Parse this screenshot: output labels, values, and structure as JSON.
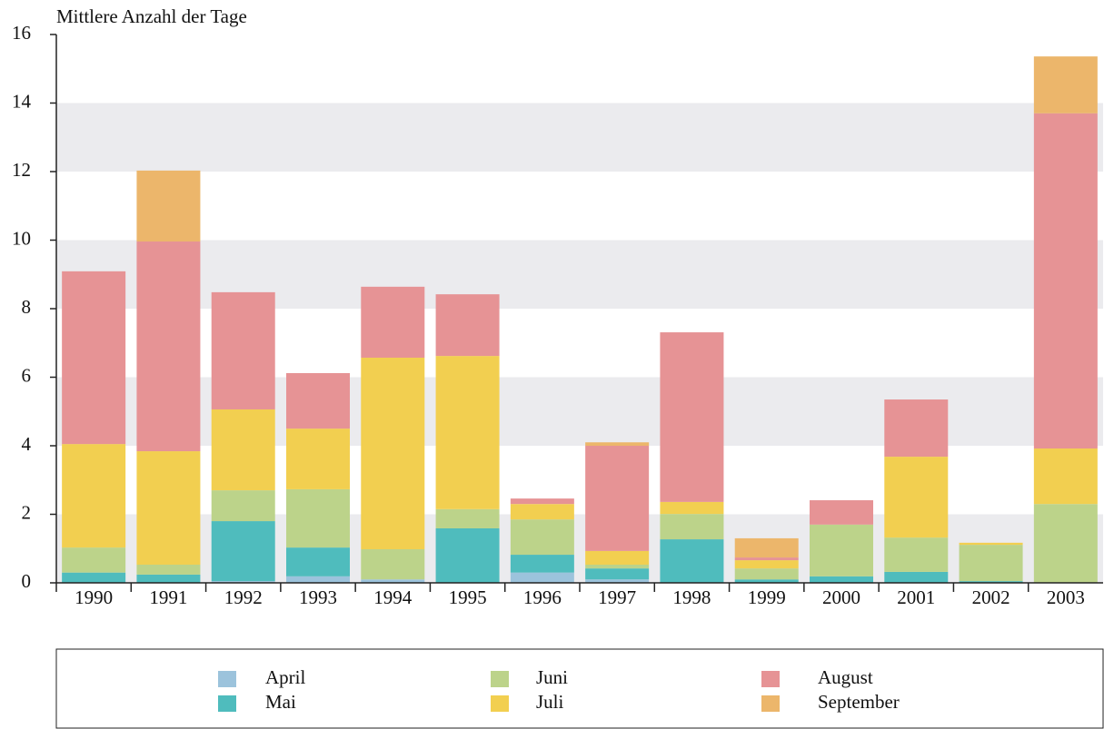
{
  "chart_data": {
    "type": "stacked_bar",
    "y_label": "Mittlere Anzahl der Tage",
    "categories": [
      "1990",
      "1991",
      "1992",
      "1993",
      "1994",
      "1995",
      "1996",
      "1997",
      "1998",
      "1999",
      "2000",
      "2001",
      "2002",
      "2003"
    ],
    "series": [
      {
        "name": "April",
        "color": "#9cc3dc",
        "values": [
          0,
          0,
          0.05,
          0.19,
          0.1,
          0,
          0.3,
          0.1,
          0,
          0,
          0,
          0,
          0,
          0
        ]
      },
      {
        "name": "Mai",
        "color": "#4fbcbd",
        "values": [
          0.3,
          0.24,
          1.75,
          0.84,
          0,
          1.59,
          0.52,
          0.32,
          1.27,
          0.1,
          0.19,
          0.32,
          0.05,
          0
        ]
      },
      {
        "name": "Juni",
        "color": "#bcd38a",
        "values": [
          0.73,
          0.29,
          0.9,
          1.7,
          0.88,
          0.56,
          1.03,
          0.11,
          0.74,
          0.32,
          1.51,
          1.0,
          1.06,
          2.3
        ]
      },
      {
        "name": "Juli",
        "color": "#f2cf50",
        "values": [
          3.02,
          3.31,
          2.36,
          1.77,
          5.59,
          4.47,
          0.45,
          0.4,
          0.35,
          0.24,
          0,
          2.36,
          0.06,
          1.62
        ]
      },
      {
        "name": "August",
        "color": "#e69395",
        "values": [
          5.04,
          6.12,
          3.42,
          1.62,
          2.07,
          1.8,
          0.16,
          3.07,
          4.95,
          0.08,
          0.71,
          1.67,
          0,
          9.78
        ]
      },
      {
        "name": "September",
        "color": "#ecb66b",
        "values": [
          0,
          2.07,
          0,
          0,
          0,
          0,
          0,
          0.1,
          0,
          0.56,
          0,
          0,
          0,
          1.66
        ]
      }
    ],
    "ylim": [
      0,
      16
    ],
    "yticks": [
      0,
      2,
      4,
      6,
      8,
      10,
      12,
      14,
      16
    ],
    "banded_grid": true
  }
}
